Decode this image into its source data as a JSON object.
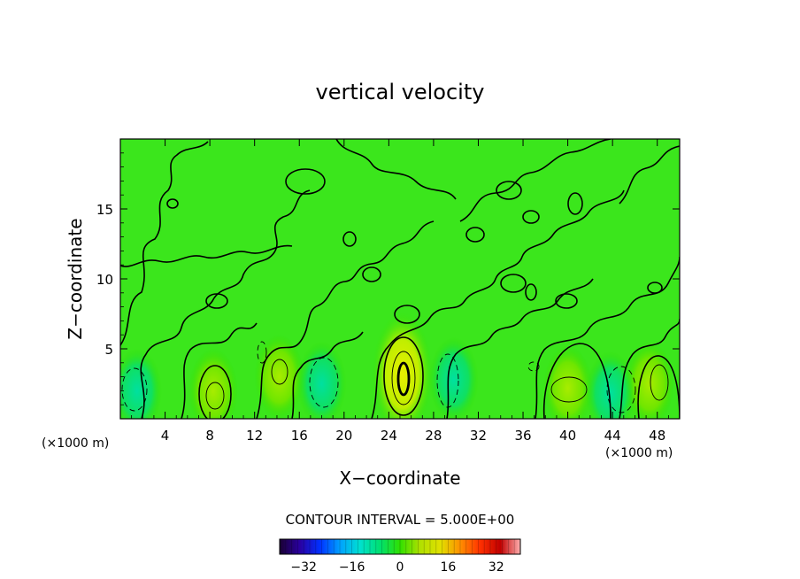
{
  "chart_data": {
    "type": "heatmap",
    "title": "vertical velocity",
    "xlabel": "X−coordinate",
    "ylabel": "Z−coordinate",
    "x_unit": "(×1000 m)",
    "y_unit": "(×1000 m)",
    "xlim": [
      0,
      50
    ],
    "ylim": [
      0,
      20
    ],
    "x_ticks": [
      4,
      8,
      12,
      16,
      20,
      24,
      28,
      32,
      36,
      40,
      44,
      48
    ],
    "y_ticks": [
      5,
      10,
      15
    ],
    "contour_interval_label": "CONTOUR INTERVAL = 5.000E+00",
    "colorbar": {
      "ticks": [
        -32,
        -16,
        0,
        16,
        32
      ],
      "tick_labels": [
        "−32",
        "−16",
        "0",
        "16",
        "32"
      ],
      "range": [
        -40,
        40
      ],
      "colors": [
        "#1a0033",
        "#2a00a0",
        "#0030ff",
        "#00a0ff",
        "#00e0d0",
        "#00e070",
        "#30e000",
        "#b0e000",
        "#e0e000",
        "#ff9000",
        "#ff3000",
        "#c00000",
        "#ffb0b0"
      ]
    },
    "features": [
      {
        "name": "updraft",
        "x": 25.2,
        "z": 3.2,
        "peak": 12
      },
      {
        "name": "updraft",
        "x": 8.3,
        "z": 2.0,
        "peak": 6
      },
      {
        "name": "updraft",
        "x": 40.0,
        "z": 2.2,
        "peak": 6
      },
      {
        "name": "updraft",
        "x": 47.3,
        "z": 2.5,
        "peak": 6
      },
      {
        "name": "updraft",
        "x": 14.2,
        "z": 3.0,
        "peak": 5
      },
      {
        "name": "downdraft",
        "x": 1.5,
        "z": 2.0,
        "peak": -6
      },
      {
        "name": "downdraft",
        "x": 18.0,
        "z": 2.5,
        "peak": -6
      },
      {
        "name": "downdraft",
        "x": 29.8,
        "z": 2.8,
        "peak": -5
      },
      {
        "name": "downdraft",
        "x": 43.8,
        "z": 1.8,
        "peak": -6
      }
    ]
  }
}
